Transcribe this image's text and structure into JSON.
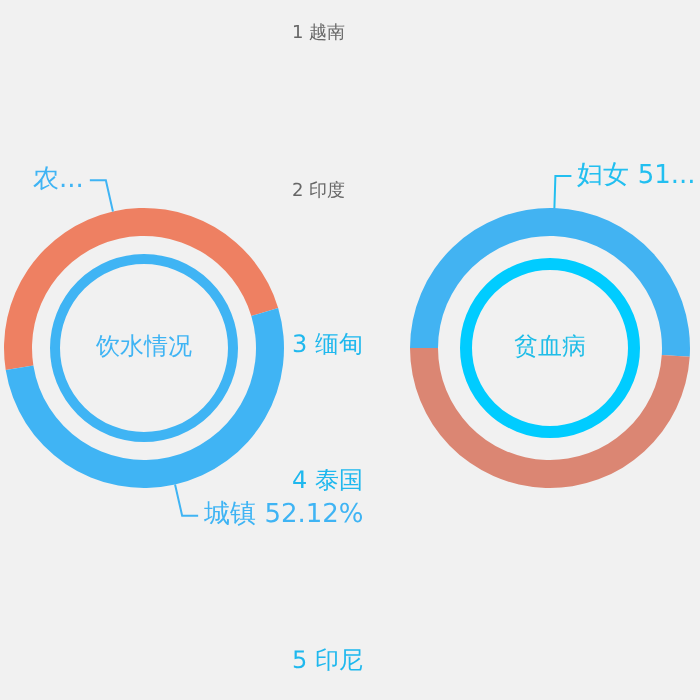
{
  "chart_data": [
    {
      "type": "donut",
      "title": "饮水情况",
      "categories": [
        "农...",
        "城镇"
      ],
      "values": [
        47.88,
        52.12
      ],
      "colors": [
        "#ee8062",
        "#40b4f4"
      ],
      "value_labels": [
        null,
        "52.12%"
      ]
    },
    {
      "type": "donut",
      "title": "贫血病",
      "categories": [
        "妇女",
        null
      ],
      "values": [
        51,
        49
      ],
      "colors": [
        "#42b3f2",
        "#db8673"
      ],
      "value_labels": [
        "51...",
        null
      ]
    },
    {
      "type": "other",
      "annotations": [
        "1 越南",
        "2 印度",
        "3 缅甸",
        "4 泰国",
        "5 印尼"
      ]
    }
  ]
}
